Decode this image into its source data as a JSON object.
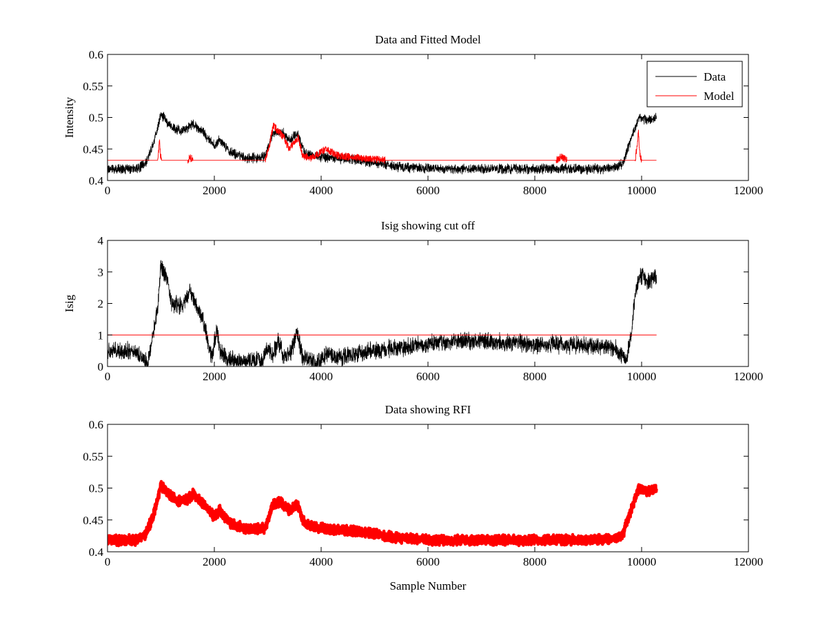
{
  "chart_data": [
    {
      "type": "line",
      "title": "Data and Fitted Model",
      "xlabel": "",
      "ylabel": "Intensity",
      "xlim": [
        0,
        12000
      ],
      "ylim": [
        0.4,
        0.6
      ],
      "xticks": [
        0,
        2000,
        4000,
        6000,
        8000,
        10000,
        12000
      ],
      "yticks": [
        0.4,
        0.45,
        0.5,
        0.55,
        0.6
      ],
      "xtick_labels": [
        "0",
        "2000",
        "4000",
        "6000",
        "8000",
        "10000",
        "12000"
      ],
      "ytick_labels": [
        "0.4",
        "0.45",
        "0.5",
        "0.55",
        "0.6"
      ],
      "grid": false,
      "legend": {
        "position": "top-right",
        "entries": [
          "Data",
          "Model"
        ]
      },
      "series": [
        {
          "name": "Data",
          "color": "#000000",
          "style": "noisy-line",
          "x": [
            0,
            500,
            700,
            850,
            1000,
            1150,
            1300,
            1450,
            1600,
            1800,
            2000,
            2100,
            2300,
            2600,
            2950,
            3100,
            3250,
            3400,
            3550,
            3700,
            4000,
            4500,
            5000,
            5500,
            6000,
            6500,
            7000,
            7500,
            8000,
            8500,
            9000,
            9500,
            9650,
            9800,
            9950,
            10100,
            10280
          ],
          "values": [
            0.418,
            0.418,
            0.425,
            0.455,
            0.505,
            0.49,
            0.48,
            0.48,
            0.49,
            0.475,
            0.455,
            0.465,
            0.445,
            0.435,
            0.437,
            0.475,
            0.478,
            0.465,
            0.475,
            0.443,
            0.437,
            0.434,
            0.428,
            0.421,
            0.419,
            0.418,
            0.418,
            0.419,
            0.418,
            0.419,
            0.418,
            0.42,
            0.428,
            0.465,
            0.5,
            0.495,
            0.5
          ],
          "noise": 0.006
        },
        {
          "name": "Model",
          "color": "#ff0000",
          "style": "line",
          "baseline": 0.432,
          "x_range": [
            0,
            10280
          ],
          "deviations": [
            {
              "x": [
                940,
                960,
                975,
                990,
                1010
              ],
              "values": [
                0.432,
                0.45,
                0.466,
                0.44,
                0.432
              ]
            },
            {
              "x": [
                1500,
                1550,
                1600
              ],
              "values": [
                0.432,
                0.437,
                0.432
              ]
            },
            {
              "x": [
                2950,
                3050,
                3100,
                3200,
                3300,
                3400,
                3500,
                3570,
                3650,
                3800,
                4000,
                4100,
                4300,
                4500,
                4800,
                5100,
                5200
              ],
              "values": [
                0.432,
                0.462,
                0.488,
                0.478,
                0.468,
                0.45,
                0.462,
                0.468,
                0.44,
                0.435,
                0.445,
                0.45,
                0.44,
                0.438,
                0.435,
                0.433,
                0.432
              ]
            },
            {
              "x": [
                8400,
                8500,
                8600
              ],
              "values": [
                0.432,
                0.438,
                0.432
              ]
            },
            {
              "x": [
                9880,
                9920,
                9940,
                9960,
                10000
              ],
              "values": [
                0.432,
                0.46,
                0.478,
                0.445,
                0.432
              ]
            }
          ]
        }
      ]
    },
    {
      "type": "line",
      "title": "Isig showing cut off",
      "xlabel": "",
      "ylabel": "Isig",
      "xlim": [
        0,
        12000
      ],
      "ylim": [
        0,
        4
      ],
      "xticks": [
        0,
        2000,
        4000,
        6000,
        8000,
        10000,
        12000
      ],
      "yticks": [
        0,
        1,
        2,
        3,
        4
      ],
      "xtick_labels": [
        "0",
        "2000",
        "4000",
        "6000",
        "8000",
        "10000",
        "12000"
      ],
      "ytick_labels": [
        "0",
        "1",
        "2",
        "3",
        "4"
      ],
      "grid": false,
      "series": [
        {
          "color": "#000000",
          "style": "noisy-line",
          "x": [
            0,
            500,
            650,
            750,
            850,
            950,
            1000,
            1100,
            1200,
            1400,
            1550,
            1650,
            1800,
            1950,
            2050,
            2100,
            2200,
            2500,
            2900,
            3000,
            3100,
            3200,
            3300,
            3450,
            3550,
            3650,
            3750,
            3850,
            4000,
            4100,
            4300,
            5000,
            5500,
            6000,
            6500,
            7000,
            7500,
            8000,
            8500,
            9000,
            9500,
            9650,
            9700,
            9800,
            9900,
            10000,
            10100,
            10280
          ],
          "values": [
            0.5,
            0.5,
            0.3,
            0.1,
            1.0,
            2.0,
            3.2,
            2.8,
            2.0,
            1.9,
            2.4,
            2.0,
            1.4,
            0.3,
            1.2,
            0.5,
            0.3,
            0.15,
            0.2,
            0.6,
            0.4,
            0.8,
            0.3,
            0.5,
            1.1,
            0.3,
            0.2,
            0.1,
            0.2,
            0.4,
            0.3,
            0.5,
            0.6,
            0.7,
            0.8,
            0.8,
            0.75,
            0.7,
            0.7,
            0.65,
            0.6,
            0.3,
            0.15,
            1.0,
            2.5,
            2.9,
            2.7,
            2.9
          ],
          "noise": 0.22
        },
        {
          "color": "#ff0000",
          "style": "line",
          "x": [
            0,
            10280
          ],
          "values": [
            1,
            1
          ]
        }
      ]
    },
    {
      "type": "scatter",
      "title": "Data showing RFI",
      "xlabel": "Sample Number",
      "ylabel": "",
      "xlim": [
        0,
        12000
      ],
      "ylim": [
        0.4,
        0.6
      ],
      "xticks": [
        0,
        2000,
        4000,
        6000,
        8000,
        10000,
        12000
      ],
      "yticks": [
        0.4,
        0.45,
        0.5,
        0.55,
        0.6
      ],
      "xtick_labels": [
        "0",
        "2000",
        "4000",
        "6000",
        "8000",
        "10000",
        "12000"
      ],
      "ytick_labels": [
        "0.4",
        "0.45",
        "0.5",
        "0.55",
        "0.6"
      ],
      "grid": false,
      "series": [
        {
          "color": "#ff0000",
          "style": "thick-markers",
          "x": [
            0,
            500,
            700,
            850,
            1000,
            1150,
            1300,
            1450,
            1600,
            1800,
            2000,
            2100,
            2300,
            2600,
            2950,
            3100,
            3250,
            3400,
            3550,
            3700,
            4000,
            4500,
            5000,
            5500,
            6000,
            6500,
            7000,
            7500,
            8000,
            8500,
            9000,
            9500,
            9650,
            9800,
            9950,
            10100,
            10280
          ],
          "values": [
            0.418,
            0.418,
            0.425,
            0.455,
            0.505,
            0.49,
            0.48,
            0.48,
            0.49,
            0.475,
            0.455,
            0.465,
            0.445,
            0.435,
            0.437,
            0.475,
            0.478,
            0.465,
            0.475,
            0.443,
            0.437,
            0.434,
            0.428,
            0.421,
            0.419,
            0.418,
            0.418,
            0.419,
            0.418,
            0.419,
            0.418,
            0.42,
            0.428,
            0.465,
            0.5,
            0.495,
            0.5
          ],
          "noise": 0.006
        }
      ]
    }
  ]
}
